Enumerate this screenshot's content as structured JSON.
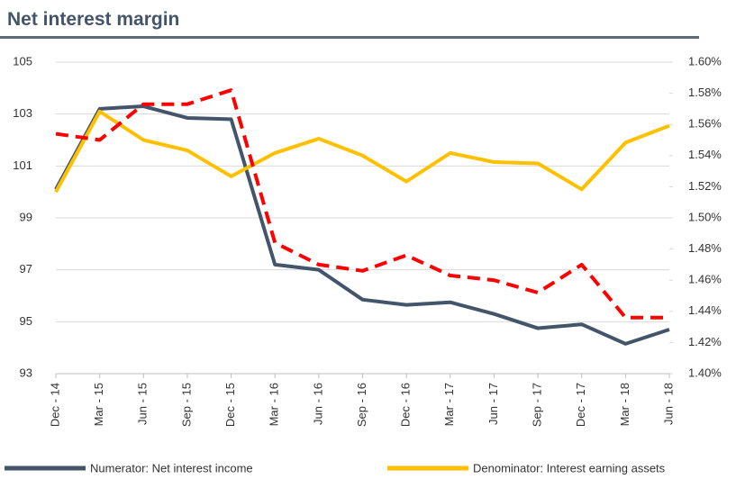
{
  "chart_data": {
    "type": "line",
    "title": "Net interest margin",
    "categories": [
      "Dec - 14",
      "Mar - 15",
      "Jun - 15",
      "Sep - 15",
      "Dec - 15",
      "Mar - 16",
      "Jun - 16",
      "Sep - 16",
      "Dec - 16",
      "Mar - 17",
      "Jun - 17",
      "Sep - 17",
      "Dec - 17",
      "Mar - 18",
      "Jun - 18"
    ],
    "series": [
      {
        "name": "Numerator: Net interest income",
        "color": "#44546a",
        "values": [
          100.1,
          103.2,
          103.3,
          102.85,
          102.8,
          97.2,
          97.0,
          95.85,
          95.65,
          95.75,
          95.3,
          94.75,
          94.9,
          94.15,
          94.7
        ]
      },
      {
        "name": "Denominator: Interest earning assets",
        "color": "#ffc000",
        "values": [
          100.0,
          103.1,
          102.0,
          101.6,
          100.6,
          101.5,
          102.05,
          101.4,
          100.4,
          101.5,
          101.15,
          101.1,
          100.1,
          101.9,
          102.55
        ]
      },
      {
        "color": "#ff0000",
        "style": "dashed",
        "axis": "y2",
        "values": [
          1.554,
          1.55,
          1.573,
          1.573,
          1.582,
          1.484,
          1.47,
          1.466,
          1.476,
          1.463,
          1.46,
          1.452,
          1.47,
          1.436,
          1.436
        ]
      }
    ],
    "ylim": [
      93,
      105
    ],
    "yticks": [
      93,
      95,
      97,
      99,
      101,
      103,
      105
    ],
    "y2lim": [
      1.4,
      1.6
    ],
    "y2ticks": [
      {
        "value": 1.4,
        "label": "1.40%"
      },
      {
        "value": 1.42,
        "label": "1.42%"
      },
      {
        "value": 1.44,
        "label": "1.44%"
      },
      {
        "value": 1.46,
        "label": "1.46%"
      },
      {
        "value": 1.48,
        "label": "1.48%"
      },
      {
        "value": 1.5,
        "label": "1.50%"
      },
      {
        "value": 1.52,
        "label": "1.52%"
      },
      {
        "value": 1.54,
        "label": "1.54%"
      },
      {
        "value": 1.56,
        "label": "1.56%"
      },
      {
        "value": 1.58,
        "label": "1.58%"
      },
      {
        "value": 1.6,
        "label": "1.60%"
      }
    ],
    "grid": true
  }
}
